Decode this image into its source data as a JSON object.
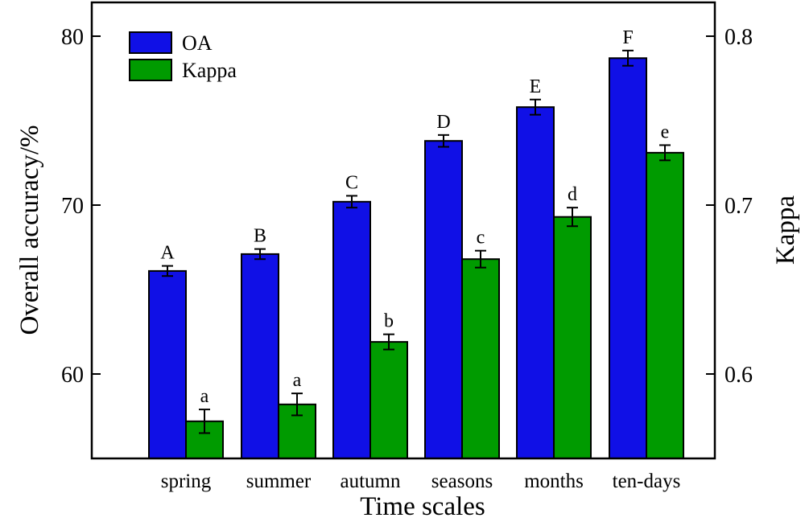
{
  "chart_data": {
    "type": "bar",
    "categories": [
      "spring",
      "summer",
      "autumn",
      "seasons",
      "months",
      "ten-days"
    ],
    "xlabel": "Time scales",
    "ylabel_left": "Overall accuracy/%",
    "ylabel_right": "Kappa",
    "ylim_left": [
      55,
      82
    ],
    "ylim_right": [
      0.55,
      0.82
    ],
    "yticks_left": [
      "60",
      "70",
      "80"
    ],
    "yticks_right": [
      "0.6",
      "0.7",
      "0.8"
    ],
    "legend_position": "top-left",
    "grid": false,
    "series": [
      {
        "name": "OA",
        "axis": "left",
        "color": "#1010e6",
        "values": [
          66.1,
          67.1,
          70.2,
          73.8,
          75.8,
          78.7
        ],
        "errors": [
          0.3,
          0.3,
          0.35,
          0.35,
          0.45,
          0.45
        ],
        "letters": [
          "A",
          "B",
          "C",
          "D",
          "E",
          "F"
        ]
      },
      {
        "name": "Kappa",
        "axis": "right",
        "color": "#009b00",
        "values": [
          0.572,
          0.582,
          0.619,
          0.668,
          0.693,
          0.731
        ],
        "errors": [
          0.007,
          0.0065,
          0.0045,
          0.005,
          0.0055,
          0.0045
        ],
        "letters": [
          "a",
          "a",
          "b",
          "c",
          "d",
          "e"
        ]
      }
    ]
  }
}
